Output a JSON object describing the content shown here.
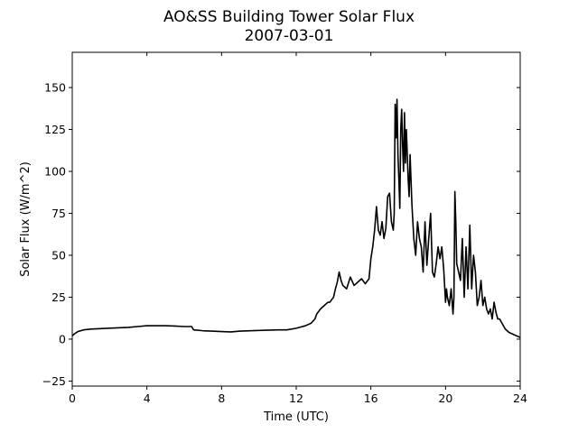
{
  "chart_data": {
    "type": "line",
    "title": "AO&SS Building Tower Solar Flux",
    "subtitle": "2007-03-01",
    "xlabel": "Time (UTC)",
    "ylabel": "Solar Flux (W/m^2)",
    "xlim": [
      0,
      24
    ],
    "ylim": [
      -28,
      171
    ],
    "xticks": [
      0,
      4,
      8,
      12,
      16,
      20,
      24
    ],
    "xtick_labels": [
      "0",
      "4",
      "8",
      "12",
      "16",
      "20",
      "24"
    ],
    "yticks": [
      -25,
      0,
      25,
      50,
      75,
      100,
      125,
      150
    ],
    "ytick_labels": [
      "−25",
      "0",
      "25",
      "50",
      "75",
      "100",
      "125",
      "150"
    ],
    "grid": false,
    "line_color": "#000000",
    "series": [
      {
        "x": [
          0,
          0.1,
          0.3,
          0.6,
          1,
          2,
          3,
          3.5,
          4,
          4.5,
          5,
          5.5,
          6,
          6.4,
          6.5,
          7,
          7.5,
          8,
          8.5,
          9,
          10,
          11,
          11.5,
          12,
          12.5,
          12.8,
          13,
          13.1,
          13.3,
          13.5,
          13.7,
          13.8,
          14,
          14.1,
          14.2,
          14.3,
          14.4,
          14.5,
          14.7,
          14.9,
          15.1,
          15.3,
          15.5,
          15.7,
          15.9,
          16.0,
          16.1,
          16.2,
          16.3,
          16.4,
          16.5,
          16.6,
          16.7,
          16.8,
          16.9,
          17.0,
          17.1,
          17.2,
          17.25,
          17.3,
          17.35,
          17.4,
          17.45,
          17.5,
          17.55,
          17.6,
          17.65,
          17.7,
          17.75,
          17.8,
          17.85,
          17.9,
          17.95,
          18.0,
          18.05,
          18.1,
          18.15,
          18.2,
          18.3,
          18.4,
          18.5,
          18.6,
          18.7,
          18.8,
          18.9,
          19.0,
          19.1,
          19.2,
          19.3,
          19.4,
          19.5,
          19.6,
          19.7,
          19.8,
          19.9,
          20.0,
          20.05,
          20.1,
          20.2,
          20.3,
          20.4,
          20.45,
          20.5,
          20.55,
          20.6,
          20.7,
          20.8,
          20.9,
          21.0,
          21.1,
          21.2,
          21.3,
          21.4,
          21.5,
          21.6,
          21.7,
          21.8,
          21.9,
          22.0,
          22.1,
          22.2,
          22.3,
          22.4,
          22.5,
          22.6,
          22.7,
          22.8,
          22.9,
          23.0,
          23.2,
          23.4,
          23.6,
          23.8,
          24.0
        ],
        "y": [
          2,
          3,
          4.5,
          5.5,
          6,
          6.5,
          7,
          7.5,
          8,
          8,
          8,
          7.8,
          7.5,
          7.5,
          5.5,
          5,
          4.8,
          4.5,
          4.3,
          4.8,
          5.2,
          5.5,
          5.5,
          6.5,
          8,
          9.5,
          12,
          15,
          18,
          20,
          22,
          22,
          25,
          30,
          34,
          40,
          35,
          32,
          30,
          37,
          32,
          34,
          36,
          33,
          36,
          48,
          55,
          65,
          79,
          65,
          62,
          70,
          60,
          66,
          85,
          87,
          70,
          65,
          75,
          140,
          120,
          143,
          110,
          95,
          78,
          125,
          137,
          115,
          100,
          135,
          105,
          125,
          110,
          95,
          85,
          110,
          95,
          80,
          60,
          50,
          70,
          60,
          55,
          40,
          70,
          44,
          60,
          75,
          40,
          37,
          45,
          55,
          48,
          55,
          42,
          22,
          30,
          25,
          20,
          30,
          15,
          25,
          88,
          70,
          45,
          40,
          35,
          60,
          25,
          55,
          30,
          68,
          30,
          50,
          40,
          20,
          25,
          35,
          20,
          25,
          18,
          15,
          18,
          12,
          22,
          16,
          12,
          12,
          10,
          6,
          4,
          3,
          2,
          1
        ]
      }
    ]
  }
}
